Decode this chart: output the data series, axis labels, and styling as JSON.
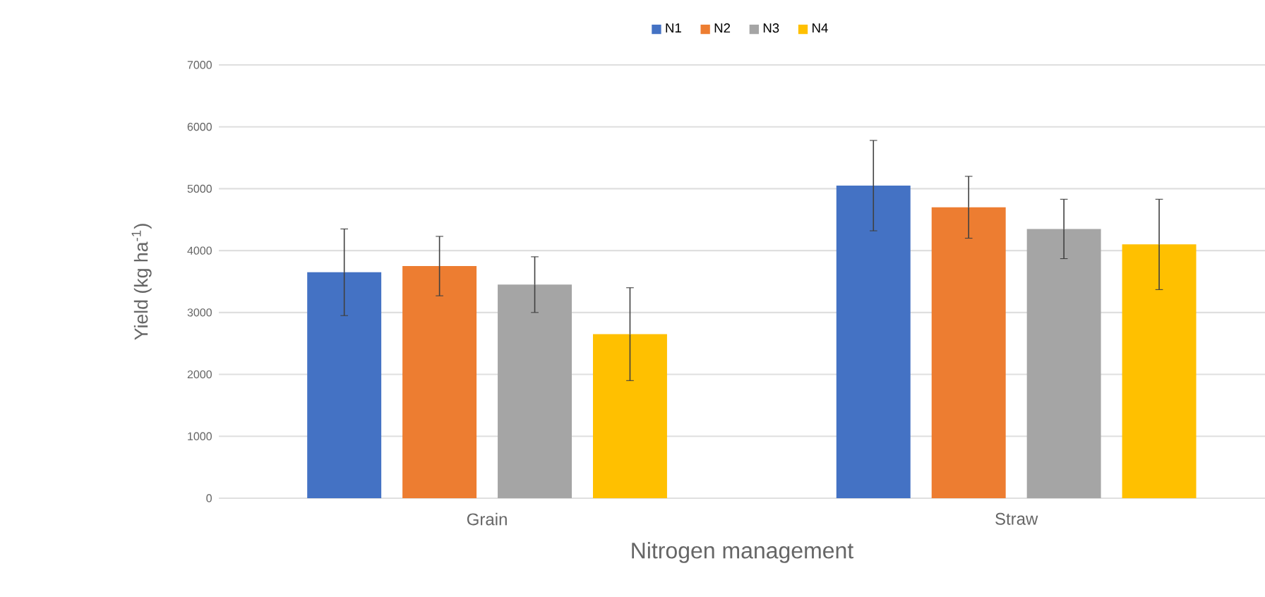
{
  "chart_data": {
    "type": "bar",
    "xlabel": "Nitrogen management",
    "ylabel": "Yield (kg ha$^{-1}$)",
    "categories": [
      "Grain",
      "Straw"
    ],
    "series": [
      {
        "name": "N1",
        "color": "#4472c4",
        "values": [
          3650,
          5050
        ],
        "errors": [
          700,
          730
        ]
      },
      {
        "name": "N2",
        "color": "#ed7d31",
        "values": [
          3750,
          4700
        ],
        "errors": [
          480,
          500
        ]
      },
      {
        "name": "N3",
        "color": "#a5a5a5",
        "values": [
          3450,
          4350
        ],
        "errors": [
          450,
          480
        ]
      },
      {
        "name": "N4",
        "color": "#ffc000",
        "values": [
          2650,
          4100
        ],
        "errors": [
          750,
          730
        ]
      }
    ],
    "ylim": [
      0,
      7000
    ],
    "yticks": [
      0,
      1000,
      2000,
      3000,
      4000,
      5000,
      6000,
      7000
    ],
    "grid": "y",
    "legend": "top"
  }
}
